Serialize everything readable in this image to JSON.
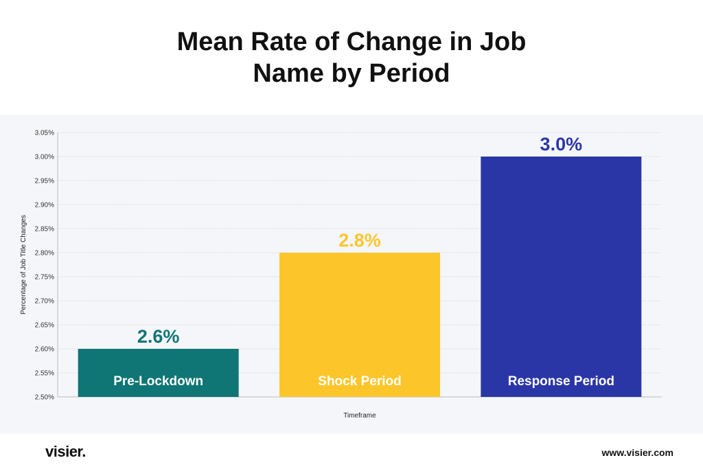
{
  "title_line1": "Mean Rate of Change in Job",
  "title_line2": "Name by Period",
  "chart_data": {
    "type": "bar",
    "categories": [
      "Pre-Lockdown",
      "Shock Period",
      "Response Period"
    ],
    "values": [
      2.6,
      2.8,
      3.0
    ],
    "value_labels": [
      "2.6%",
      "2.8%",
      "3.0%"
    ],
    "colors": [
      "#0f7575",
      "#fcc62b",
      "#2b36a6"
    ],
    "ylim": [
      2.5,
      3.05
    ],
    "yticks": [
      "2.50%",
      "2.55%",
      "2.60%",
      "2.65%",
      "2.70%",
      "2.75%",
      "2.80%",
      "2.85%",
      "2.90%",
      "2.95%",
      "3.00%",
      "3.05%"
    ],
    "ylabel": "Percentage of Job Title Changes",
    "xlabel": "Timeframe",
    "grid": true
  },
  "footer": {
    "brand": "visier.",
    "website": "www.visier.com"
  }
}
